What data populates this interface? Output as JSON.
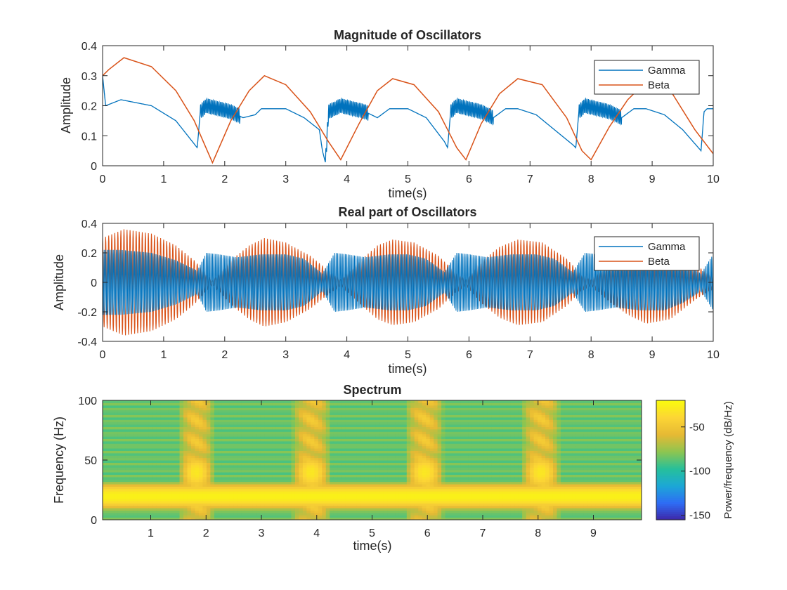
{
  "chart_data": [
    {
      "type": "line",
      "title": "Magnitude of Oscillators",
      "xlabel": "time(s)",
      "ylabel": "Amplitude",
      "xlim": [
        0,
        10
      ],
      "ylim": [
        0,
        0.4
      ],
      "xticks": [
        0,
        1,
        2,
        3,
        4,
        5,
        6,
        7,
        8,
        9,
        10
      ],
      "yticks": [
        0,
        0.1,
        0.2,
        0.3,
        0.4
      ],
      "legend_position": "top-right",
      "series": [
        {
          "name": "Gamma",
          "color": "#0072bd",
          "x": [
            0,
            0.05,
            0.3,
            0.8,
            1.2,
            1.55,
            1.6,
            1.7,
            1.9,
            2.1,
            2.3,
            2.5,
            2.6,
            3.0,
            3.3,
            3.55,
            3.6,
            3.65,
            3.7,
            3.9,
            4.1,
            4.3,
            4.5,
            4.7,
            5.0,
            5.3,
            5.6,
            5.65,
            5.7,
            5.8,
            6.0,
            6.2,
            6.4,
            6.6,
            6.8,
            7.1,
            7.4,
            7.7,
            7.75,
            7.8,
            7.9,
            8.1,
            8.3,
            8.5,
            8.7,
            8.9,
            9.2,
            9.5,
            9.8,
            9.85,
            9.9,
            10
          ],
          "y": [
            0.3,
            0.2,
            0.22,
            0.2,
            0.15,
            0.06,
            0.18,
            0.2,
            0.19,
            0.18,
            0.16,
            0.17,
            0.19,
            0.19,
            0.16,
            0.12,
            0.05,
            0.01,
            0.18,
            0.2,
            0.19,
            0.18,
            0.16,
            0.19,
            0.19,
            0.16,
            0.08,
            0.06,
            0.18,
            0.2,
            0.19,
            0.18,
            0.16,
            0.19,
            0.19,
            0.17,
            0.12,
            0.07,
            0.06,
            0.18,
            0.2,
            0.19,
            0.18,
            0.16,
            0.19,
            0.19,
            0.17,
            0.12,
            0.05,
            0.18,
            0.19,
            0.19
          ]
        },
        {
          "name": "Beta",
          "color": "#d95319",
          "x": [
            0,
            0.1,
            0.35,
            0.8,
            1.2,
            1.5,
            1.8,
            2.1,
            2.4,
            2.65,
            3.0,
            3.4,
            3.7,
            3.9,
            4.2,
            4.5,
            4.75,
            5.1,
            5.5,
            5.8,
            5.95,
            6.2,
            6.5,
            6.8,
            7.2,
            7.6,
            7.85,
            8.0,
            8.3,
            8.6,
            8.9,
            9.3,
            9.7,
            10
          ],
          "y": [
            0.3,
            0.32,
            0.36,
            0.33,
            0.25,
            0.15,
            0.01,
            0.15,
            0.25,
            0.3,
            0.27,
            0.18,
            0.08,
            0.02,
            0.14,
            0.25,
            0.29,
            0.27,
            0.18,
            0.06,
            0.02,
            0.14,
            0.24,
            0.29,
            0.27,
            0.16,
            0.05,
            0.02,
            0.13,
            0.22,
            0.28,
            0.25,
            0.12,
            0.04
          ]
        }
      ]
    },
    {
      "type": "line",
      "title": "Real part of Oscillators",
      "xlabel": "time(s)",
      "ylabel": "Amplitude",
      "xlim": [
        0,
        10
      ],
      "ylim": [
        -0.4,
        0.4
      ],
      "xticks": [
        0,
        1,
        2,
        3,
        4,
        5,
        6,
        7,
        8,
        9,
        10
      ],
      "yticks": [
        -0.4,
        -0.2,
        0,
        0.2,
        0.4
      ],
      "legend_position": "top-right",
      "series": [
        {
          "name": "Gamma",
          "color": "#0072bd",
          "frequency_hz": 40,
          "envelope_x": [
            0,
            0.3,
            0.8,
            1.2,
            1.55,
            1.7,
            1.9,
            2.2,
            2.6,
            3.0,
            3.3,
            3.6,
            3.8,
            4.0,
            4.3,
            4.7,
            5.0,
            5.3,
            5.6,
            5.8,
            6.0,
            6.3,
            6.7,
            7.1,
            7.4,
            7.7,
            7.9,
            8.1,
            8.4,
            8.8,
            9.2,
            9.5,
            9.8,
            10
          ],
          "envelope_y": [
            0.22,
            0.22,
            0.2,
            0.15,
            0.08,
            0.2,
            0.19,
            0.17,
            0.19,
            0.19,
            0.16,
            0.06,
            0.2,
            0.19,
            0.17,
            0.19,
            0.19,
            0.16,
            0.07,
            0.2,
            0.19,
            0.17,
            0.19,
            0.19,
            0.16,
            0.07,
            0.2,
            0.19,
            0.17,
            0.19,
            0.19,
            0.14,
            0.06,
            0.19
          ]
        },
        {
          "name": "Beta",
          "color": "#d95319",
          "frequency_hz": 20,
          "envelope_x": [
            0,
            0.35,
            0.8,
            1.2,
            1.5,
            1.8,
            2.1,
            2.4,
            2.65,
            3.0,
            3.4,
            3.7,
            3.9,
            4.2,
            4.5,
            4.75,
            5.1,
            5.5,
            5.8,
            5.95,
            6.2,
            6.5,
            6.8,
            7.2,
            7.6,
            7.85,
            8.0,
            8.3,
            8.6,
            8.9,
            9.3,
            9.7,
            10
          ],
          "envelope_y": [
            0.3,
            0.36,
            0.33,
            0.25,
            0.15,
            0.01,
            0.15,
            0.25,
            0.3,
            0.27,
            0.18,
            0.08,
            0.02,
            0.14,
            0.25,
            0.29,
            0.27,
            0.18,
            0.06,
            0.02,
            0.14,
            0.24,
            0.29,
            0.27,
            0.16,
            0.05,
            0.02,
            0.13,
            0.22,
            0.28,
            0.25,
            0.12,
            0.04
          ]
        }
      ]
    },
    {
      "type": "heatmap",
      "title": "Spectrum",
      "xlabel": "time(s)",
      "ylabel": "Frequency (Hz)",
      "xlim": [
        0.13,
        9.87
      ],
      "ylim": [
        0,
        100
      ],
      "xticks": [
        1,
        2,
        3,
        4,
        5,
        6,
        7,
        8,
        9
      ],
      "yticks": [
        0,
        50,
        100
      ],
      "bursts": [
        {
          "start": 1.55,
          "end": 2.1
        },
        {
          "start": 3.6,
          "end": 4.2
        },
        {
          "start": 5.65,
          "end": 6.25
        },
        {
          "start": 7.75,
          "end": 8.35
        }
      ],
      "band_hz": 20,
      "burst_band_hz": 40,
      "colorbar": {
        "label": "Power/frequency (dB/Hz)",
        "range": [
          -155,
          -20
        ],
        "ticks": [
          -50,
          -100,
          -150
        ],
        "colors": [
          "#3e26a8",
          "#2e6df5",
          "#1ca7d6",
          "#26c09a",
          "#8ec550",
          "#e6b934",
          "#fcd535",
          "#f9fb0e"
        ]
      }
    }
  ]
}
